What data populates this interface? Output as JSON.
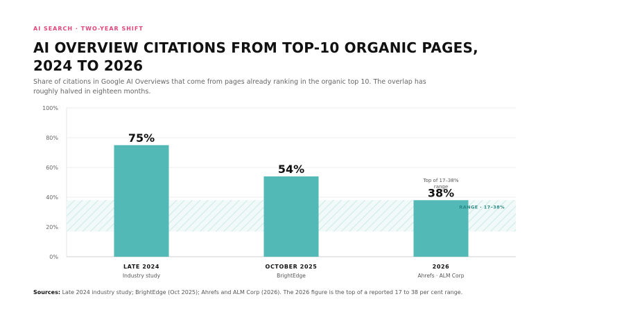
{
  "header": {
    "kicker": "AI SEARCH · TWO-YEAR SHIFT",
    "title": "AI Overview citations from top-10 organic pages, 2024 to 2026",
    "subtitle": "Share of citations in Google AI Overviews that come from pages already ranking in the organic top 10. The overlap has roughly halved in eighteen months."
  },
  "chart_data": {
    "type": "bar",
    "categories": [
      "LATE 2024",
      "OCTOBER 2025",
      "2026"
    ],
    "category_sources": [
      "Industry study",
      "BrightEdge",
      "Ahrefs · ALM Corp"
    ],
    "values": [
      75,
      54,
      38
    ],
    "data_labels": [
      "75%",
      "54%",
      "38%"
    ],
    "ylim": [
      0,
      100
    ],
    "yticks": [
      0,
      20,
      40,
      60,
      80,
      100
    ],
    "ytick_labels": [
      "0%",
      "20%",
      "40%",
      "60%",
      "80%",
      "100%"
    ],
    "grid": true,
    "range_band": {
      "low": 17,
      "high": 38,
      "label": "RANGE · 17–38%"
    },
    "annotation": "Top of 17–38% range",
    "colors": {
      "bar": "#52b9b7",
      "band": "#cfe9e6",
      "band_label": "#2a8a86"
    }
  },
  "footer": {
    "sources_label": "Sources:",
    "sources_text": "Late 2024 industry study; BrightEdge (Oct 2025); Ahrefs and ALM Corp (2026). The 2026 figure is the top of a reported 17 to 38 per cent range."
  }
}
